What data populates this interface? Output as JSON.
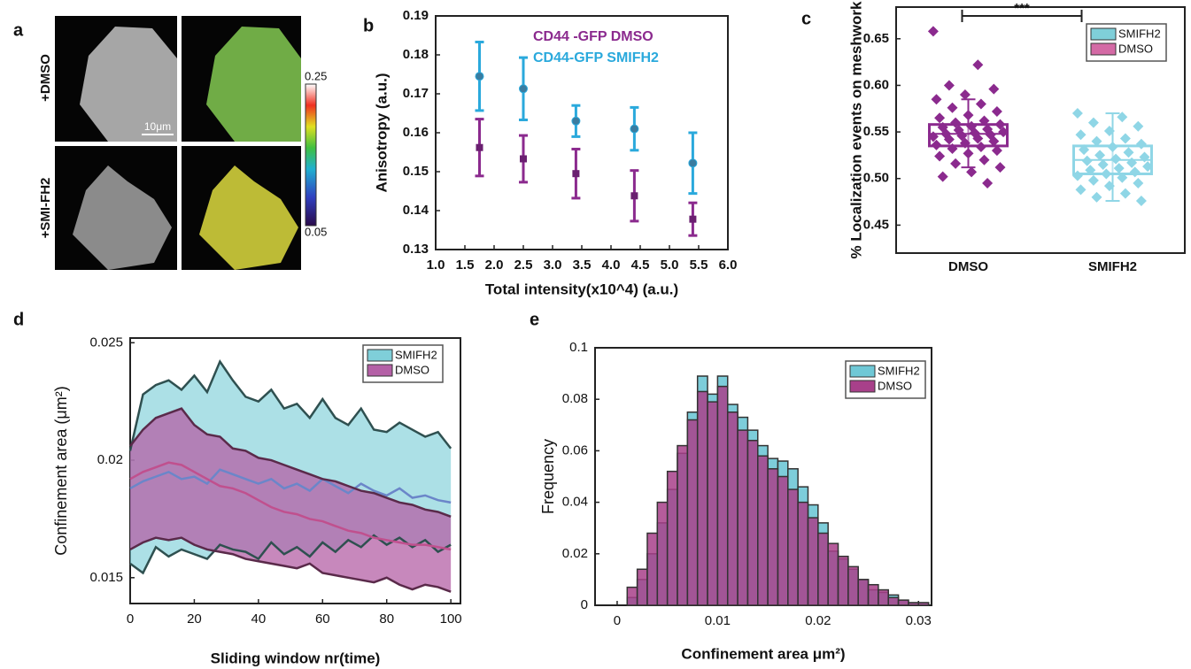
{
  "chart_data": [
    {
      "type": "image",
      "panel_label": "a",
      "row_labels": [
        "+DMSO",
        "+SMI-FH2"
      ],
      "scale_bar": "10μm",
      "colorbar_lim": [
        0.05,
        0.25
      ],
      "colorbar_ticks": [
        0.05,
        0.25
      ]
    },
    {
      "type": "errorbar",
      "panel_label": "b",
      "ylabel": "Anisotropy (a.u.)",
      "xlabel": "Total intensity(x10^4) (a.u.)",
      "xlim": [
        1,
        6
      ],
      "xticks": [
        {
          "value": 1,
          "label": "1.0"
        },
        1.5,
        {
          "value": 2,
          "label": "2.0"
        },
        2.5,
        {
          "value": 3,
          "label": "3.0"
        },
        3.5,
        {
          "value": 4,
          "label": "4.0"
        },
        4.5,
        {
          "value": 5,
          "label": "5.0"
        },
        5.5,
        {
          "value": 6,
          "label": "6.0"
        }
      ],
      "ylim": [
        0.13,
        0.19
      ],
      "yticks": [
        0.13,
        0.14,
        0.15,
        0.16,
        0.17,
        0.18,
        0.19
      ],
      "series": [
        {
          "name": "CD44 -GFP DMSO",
          "color": "#8b2a8e",
          "marker": "square",
          "x": [
            1.75,
            2.5,
            3.4,
            4.4,
            5.4
          ],
          "values": [
            0.1562,
            0.1533,
            0.1495,
            0.1438,
            0.1378
          ],
          "errors": [
            0.0073,
            0.006,
            0.0063,
            0.0065,
            0.0042
          ]
        },
        {
          "name": "CD44-GFP SMIFH2",
          "color": "#2aa9dc",
          "marker": "circle",
          "x": [
            1.75,
            2.5,
            3.4,
            4.4,
            5.4
          ],
          "values": [
            0.1745,
            0.1713,
            0.163,
            0.161,
            0.1522
          ],
          "errors": [
            0.0088,
            0.008,
            0.004,
            0.0055,
            0.0078
          ]
        }
      ]
    },
    {
      "type": "box",
      "panel_label": "c",
      "ylabel": "% Localization events on meshwork",
      "annotation": "***",
      "categories": [
        "DMSO",
        "SMIFH2"
      ],
      "ylim": [
        0.42,
        0.684
      ],
      "yticks": [
        0.45,
        {
          "value": 0.5,
          "label": "0.50"
        },
        0.55,
        {
          "value": 0.6,
          "label": "0.60"
        },
        0.65
      ],
      "series": [
        {
          "name": "SMIFH2",
          "category": 1,
          "color": "#8fd6e6",
          "legend_color": "#7fcfd9",
          "q1": 0.505,
          "median": 0.52,
          "q3": 0.535,
          "whisker_low": 0.476,
          "whisker_high": 0.57,
          "points": [
            0.57,
            0.566,
            0.56,
            0.556,
            0.551,
            0.547,
            0.543,
            0.54,
            0.537,
            0.534,
            0.531,
            0.528,
            0.525,
            0.523,
            0.521,
            0.519,
            0.517,
            0.515,
            0.513,
            0.511,
            0.509,
            0.507,
            0.505,
            0.503,
            0.501,
            0.498,
            0.495,
            0.492,
            0.488,
            0.484,
            0.48,
            0.476
          ]
        },
        {
          "name": "DMSO",
          "category": 0,
          "color": "#8b2a8e",
          "legend_color": "#d46aa5",
          "q1": 0.535,
          "median": 0.548,
          "q3": 0.558,
          "whisker_low": 0.512,
          "whisker_high": 0.585,
          "points": [
            0.658,
            0.622,
            0.6,
            0.596,
            0.59,
            0.585,
            0.58,
            0.576,
            0.572,
            0.568,
            0.565,
            0.562,
            0.56,
            0.558,
            0.556,
            0.555,
            0.553,
            0.552,
            0.55,
            0.549,
            0.548,
            0.547,
            0.546,
            0.545,
            0.543,
            0.542,
            0.54,
            0.538,
            0.536,
            0.534,
            0.532,
            0.53,
            0.527,
            0.524,
            0.52,
            0.516,
            0.512,
            0.507,
            0.502,
            0.495
          ]
        }
      ]
    },
    {
      "type": "band",
      "panel_label": "d",
      "ylabel": "Confinement area (μm²)",
      "xlabel": "Sliding window nr(time)",
      "xlim": [
        0,
        103
      ],
      "xticks": [
        0,
        20,
        40,
        60,
        80,
        100
      ],
      "ylim": [
        0.0139,
        0.0252
      ],
      "yticks": [
        0.015,
        0.02,
        0.025
      ],
      "x": [
        0,
        4,
        8,
        12,
        16,
        20,
        24,
        28,
        32,
        36,
        40,
        44,
        48,
        52,
        56,
        60,
        64,
        68,
        72,
        76,
        80,
        84,
        88,
        92,
        96,
        100
      ],
      "series": [
        {
          "name": "SMIFH2",
          "color": "#7fcfd9",
          "mean_color": "#6b86c9",
          "edge_color": "#2f5050",
          "values": [
            0.0188,
            0.0191,
            0.0193,
            0.0195,
            0.0192,
            0.0193,
            0.019,
            0.0196,
            0.0194,
            0.0192,
            0.019,
            0.0192,
            0.0188,
            0.019,
            0.0187,
            0.0192,
            0.0189,
            0.0186,
            0.019,
            0.0187,
            0.0185,
            0.0188,
            0.0184,
            0.0185,
            0.0183,
            0.0182
          ],
          "upper": [
            0.0204,
            0.0228,
            0.0232,
            0.0234,
            0.023,
            0.0236,
            0.0229,
            0.0242,
            0.0234,
            0.0227,
            0.0225,
            0.023,
            0.0222,
            0.0224,
            0.0218,
            0.0226,
            0.0218,
            0.0215,
            0.0222,
            0.0213,
            0.0212,
            0.0216,
            0.0213,
            0.021,
            0.0212,
            0.0205
          ],
          "lower": [
            0.0156,
            0.0152,
            0.0163,
            0.0159,
            0.0162,
            0.016,
            0.0158,
            0.0164,
            0.0162,
            0.0161,
            0.0158,
            0.0165,
            0.016,
            0.0163,
            0.0159,
            0.0165,
            0.0161,
            0.0166,
            0.0163,
            0.0168,
            0.0164,
            0.0167,
            0.0163,
            0.0166,
            0.0161,
            0.0164
          ]
        },
        {
          "name": "DMSO",
          "color": "#b460a6",
          "mean_color": "#c0508e",
          "edge_color": "#5a2a4a",
          "values": [
            0.0192,
            0.0195,
            0.0197,
            0.0199,
            0.0198,
            0.0195,
            0.0192,
            0.0189,
            0.0188,
            0.0186,
            0.0183,
            0.018,
            0.0178,
            0.0177,
            0.0175,
            0.0174,
            0.0172,
            0.017,
            0.0169,
            0.0167,
            0.0166,
            0.0165,
            0.0164,
            0.0164,
            0.0163,
            0.0162
          ],
          "upper": [
            0.0206,
            0.0213,
            0.0218,
            0.022,
            0.0222,
            0.0215,
            0.0211,
            0.021,
            0.0205,
            0.0204,
            0.0201,
            0.02,
            0.0198,
            0.0196,
            0.0194,
            0.0192,
            0.0191,
            0.0189,
            0.0187,
            0.0186,
            0.0184,
            0.0182,
            0.0181,
            0.0179,
            0.0178,
            0.0176
          ],
          "lower": [
            0.0162,
            0.0165,
            0.0167,
            0.0166,
            0.0167,
            0.0164,
            0.0162,
            0.0161,
            0.016,
            0.0158,
            0.0157,
            0.0156,
            0.0155,
            0.0154,
            0.0156,
            0.0152,
            0.0151,
            0.015,
            0.0149,
            0.0148,
            0.015,
            0.0147,
            0.0145,
            0.0147,
            0.0146,
            0.0144
          ]
        }
      ]
    },
    {
      "type": "histogram",
      "panel_label": "e",
      "ylabel": "Frequency",
      "xlabel": "Confinement area μm²)",
      "xlim": [
        -0.0022,
        0.0313
      ],
      "xticks": [
        0,
        0.01,
        0.02,
        0.03
      ],
      "ylim": [
        0,
        0.1
      ],
      "yticks": [
        0,
        0.02,
        0.04,
        0.06,
        0.08,
        0.1
      ],
      "bins": [
        0.001,
        0.002,
        0.003,
        0.004,
        0.005,
        0.006,
        0.007,
        0.008,
        0.009,
        0.01,
        0.011,
        0.012,
        0.013,
        0.014,
        0.015,
        0.016,
        0.017,
        0.018,
        0.019,
        0.02,
        0.021,
        0.022,
        0.023,
        0.024,
        0.025,
        0.026,
        0.027,
        0.028,
        0.029,
        0.03,
        0.031
      ],
      "series": [
        {
          "name": "SMIFH2",
          "color": "#6fc8d6",
          "values": [
            0.003,
            0.01,
            0.02,
            0.032,
            0.045,
            0.059,
            0.075,
            0.089,
            0.082,
            0.089,
            0.078,
            0.073,
            0.068,
            0.062,
            0.057,
            0.056,
            0.053,
            0.046,
            0.039,
            0.032,
            0.021,
            0.018,
            0.014,
            0.01,
            0.006,
            0.005,
            0.004,
            0.002,
            0.001,
            0.001
          ]
        },
        {
          "name": "DMSO",
          "color": "#a8408a",
          "values": [
            0.007,
            0.014,
            0.028,
            0.04,
            0.052,
            0.062,
            0.072,
            0.083,
            0.079,
            0.085,
            0.075,
            0.068,
            0.064,
            0.058,
            0.053,
            0.05,
            0.045,
            0.04,
            0.034,
            0.028,
            0.024,
            0.019,
            0.015,
            0.01,
            0.008,
            0.006,
            0.003,
            0.002,
            0.001,
            0.001
          ]
        }
      ]
    }
  ]
}
